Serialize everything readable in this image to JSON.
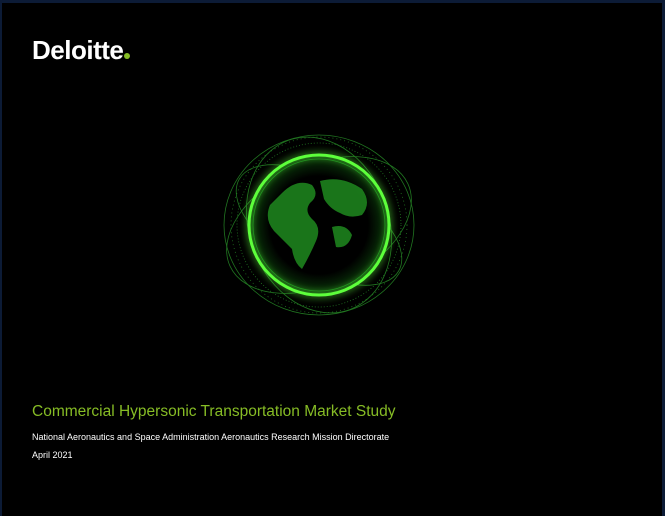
{
  "logo": "Deloitte",
  "title": "Commercial Hypersonic Transportation Market Study",
  "subtitle": "National Aeronautics and Space Administration Aeronautics Research Mission Directorate",
  "date": "April 2021"
}
